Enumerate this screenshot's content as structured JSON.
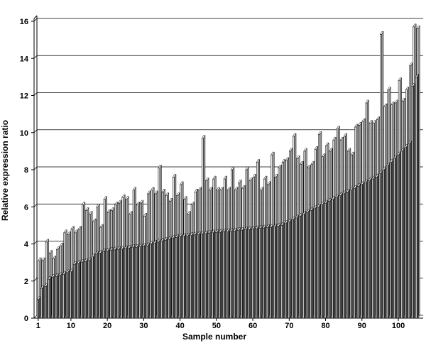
{
  "chart_data": {
    "type": "bar",
    "style": "3d-columns",
    "xlabel": "Sample number",
    "ylabel": "Relative expression ratio",
    "ylim": [
      0,
      16
    ],
    "yticks": [
      0,
      2,
      4,
      6,
      8,
      10,
      12,
      14,
      16
    ],
    "xticks": [
      1,
      10,
      20,
      30,
      40,
      50,
      60,
      70,
      80,
      90,
      100
    ],
    "xlim": [
      1,
      105
    ],
    "grid": "horizontal",
    "series": [
      {
        "values": [
          1.0,
          1.6,
          1.7,
          2.1,
          2.2,
          2.25,
          2.3,
          2.35,
          2.45,
          2.5,
          2.9,
          2.95,
          3.0,
          3.05,
          3.1,
          3.3,
          3.45,
          3.5,
          3.6,
          3.62,
          3.65,
          3.68,
          3.7,
          3.72,
          3.75,
          3.78,
          3.8,
          3.82,
          3.85,
          3.88,
          3.9,
          4.0,
          4.05,
          4.1,
          4.15,
          4.2,
          4.25,
          4.3,
          4.35,
          4.38,
          4.4,
          4.42,
          4.45,
          4.48,
          4.5,
          4.52,
          4.55,
          4.58,
          4.6,
          4.62,
          4.63,
          4.65,
          4.66,
          4.68,
          4.7,
          4.72,
          4.74,
          4.76,
          4.78,
          4.8,
          4.82,
          4.84,
          4.86,
          4.88,
          4.9,
          4.92,
          4.95,
          5.0,
          5.1,
          5.2,
          5.3,
          5.4,
          5.5,
          5.6,
          5.7,
          5.8,
          5.9,
          6.0,
          6.1,
          6.2,
          6.3,
          6.4,
          6.5,
          6.6,
          6.7,
          6.8,
          6.9,
          7.0,
          7.1,
          7.2,
          7.3,
          7.4,
          7.5,
          7.6,
          7.8,
          8.0,
          8.2,
          8.4,
          8.6,
          8.8,
          9.0,
          9.2,
          9.4,
          12.5,
          13.0
        ]
      },
      {
        "values": [
          3.1,
          3.1,
          4.1,
          3.5,
          3.2,
          3.7,
          3.9,
          4.6,
          4.5,
          4.8,
          4.6,
          4.8,
          6.1,
          5.8,
          5.6,
          5.2,
          6.0,
          4.9,
          6.4,
          5.7,
          5.8,
          6.1,
          6.2,
          6.5,
          6.4,
          5.6,
          6.9,
          6.1,
          6.2,
          5.5,
          6.7,
          6.9,
          6.7,
          8.1,
          6.8,
          6.6,
          6.3,
          7.6,
          6.6,
          7.2,
          6.4,
          5.6,
          6.1,
          6.8,
          6.9,
          9.7,
          7.4,
          6.9,
          7.5,
          6.9,
          6.9,
          7.5,
          6.9,
          8.0,
          6.9,
          7.3,
          7.0,
          8.0,
          7.4,
          7.6,
          8.4,
          6.9,
          7.5,
          7.2,
          8.8,
          7.6,
          8.1,
          8.4,
          8.5,
          9.0,
          9.8,
          8.6,
          8.3,
          9.0,
          8.1,
          8.3,
          9.1,
          9.9,
          8.7,
          9.3,
          9.0,
          9.6,
          10.2,
          9.6,
          9.8,
          9.0,
          8.8,
          10.3,
          10.4,
          10.6,
          11.6,
          10.5,
          10.5,
          10.7,
          15.3,
          11.4,
          12.3,
          11.5,
          11.6,
          12.8,
          11.7,
          12.3,
          13.6,
          15.7,
          15.6
        ]
      }
    ]
  }
}
